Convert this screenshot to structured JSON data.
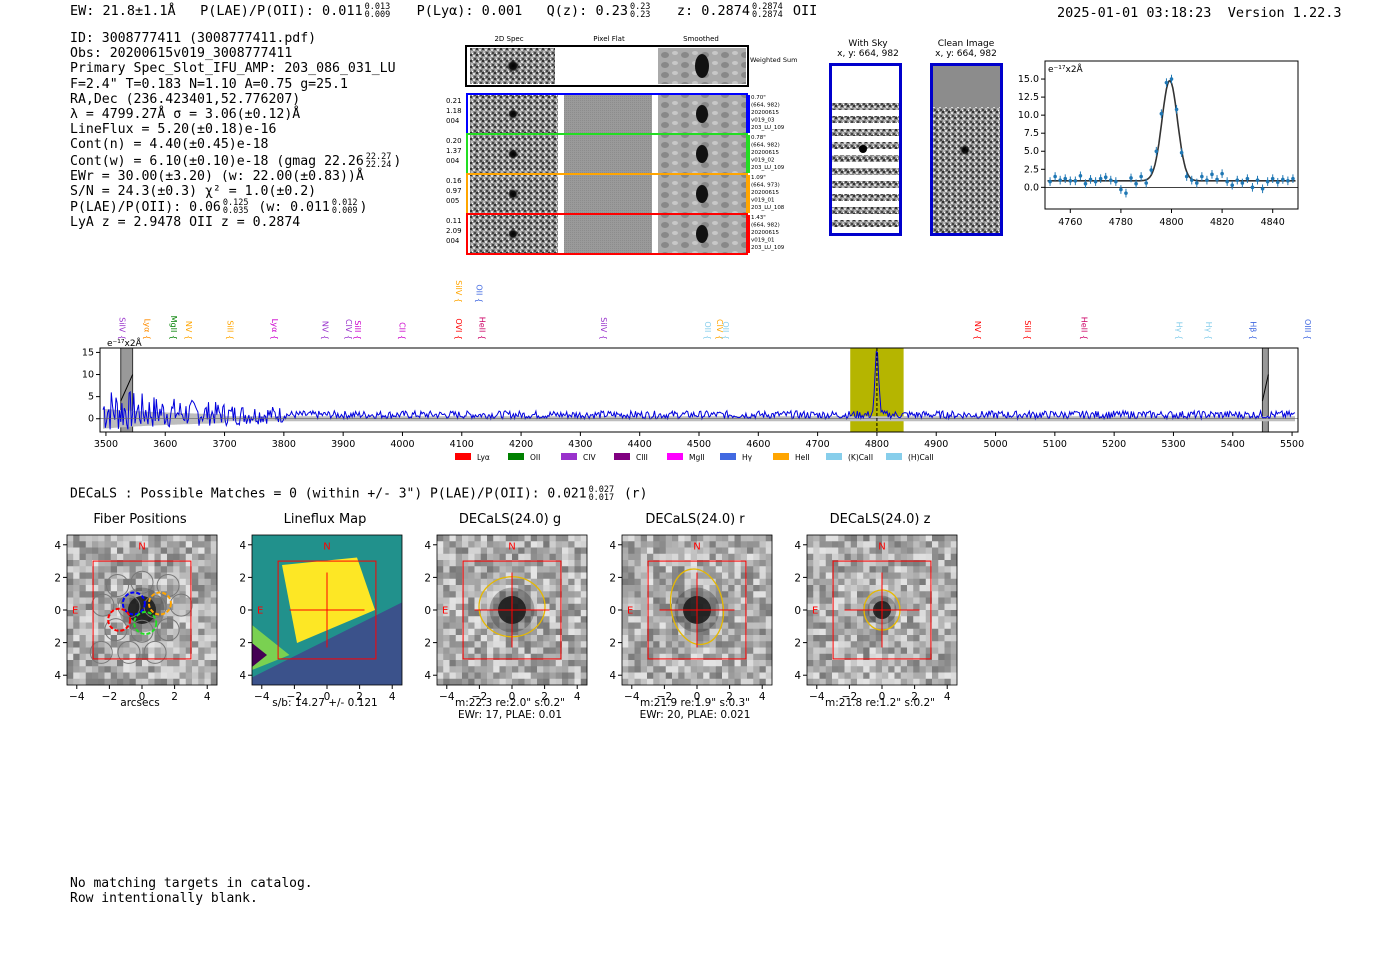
{
  "header": {
    "ew": "EW: 21.8±1.1Å",
    "plae_label": "P(LAE)/P(OII): 0.011",
    "plae_hi": "0.013",
    "plae_lo": "0.009",
    "plya": "P(Lyα): 0.001",
    "qz_label": "Q(z): 0.23",
    "qz_hi": "0.23",
    "qz_lo": "0.23",
    "z_label": "z: 0.2874",
    "z_hi": "0.2874",
    "z_lo": "0.2874",
    "z_line": "OII",
    "timestamp": "2025-01-01 03:18:23",
    "version": "Version 1.22.3"
  },
  "info": {
    "id": "ID: 3008777411 (3008777411.pdf)",
    "obs": "Obs: 20200615v019_3008777411",
    "primary": "Primary Spec_Slot_IFU_AMP: 203_086_031_LU",
    "params": "F=2.4\"  T=0.183  N=1.10  A=0.75  g=25.1",
    "radec": "RA,Dec (236.423401,52.776207)",
    "lambda": "λ = 4799.27Å   σ = 3.06(±0.12)Å",
    "lineflux": "LineFlux = 5.20(±0.18)e-16",
    "contn": "Cont(n) = 4.40(±0.45)e-18",
    "contw_a": "Cont(w) = 6.10(±0.10)e-18 (gmag 22.26",
    "contw_hi": "22.27",
    "contw_lo": "22.24",
    "contw_b": ")",
    "ewr": "EWr = 30.00(±3.20) (w: 22.00(±0.83))Å",
    "sn": "S/N = 24.3(±0.3)  χ² = 1.0(±0.2)",
    "plae_a": "P(LAE)/P(OII): 0.06",
    "plae_hi": "0.125",
    "plae_lo": "0.035",
    "plae_b": "(w: 0.011",
    "plae_w_hi": "0.012",
    "plae_w_lo": "0.009",
    "plae_c": ")",
    "z": "LyA z = 2.9478   OII z = 0.2874"
  },
  "cutouts": {
    "col_headers": [
      "2D Spec",
      "Pixel Flat",
      "Smoothed"
    ],
    "weighted": "Weighted Sum",
    "rows": [
      {
        "left": [
          "0.21",
          "1.18",
          "004"
        ],
        "right": [
          "0.70\"",
          "(664, 982)",
          "20200615",
          "v019_03",
          "203_LU_109"
        ],
        "color": "#0000ff"
      },
      {
        "left": [
          "0.20",
          "1.37",
          "004"
        ],
        "right": [
          "0.78\"",
          "(664, 982)",
          "20200615",
          "v019_02",
          "203_LU_109"
        ],
        "color": "#22dd22"
      },
      {
        "left": [
          "0.16",
          "0.97",
          "005"
        ],
        "right": [
          "1.09\"",
          "(664, 973)",
          "20200615",
          "v019_01",
          "203_LU_108"
        ],
        "color": "#ffa500"
      },
      {
        "left": [
          "0.11",
          "2.09",
          "004"
        ],
        "right": [
          "1.43\"",
          "(664, 982)",
          "20200615",
          "v019_01",
          "203_LU_109"
        ],
        "color": "#ff0000"
      }
    ]
  },
  "sky": {
    "with_sky": "With Sky",
    "with_sky_xy": "x, y: 664, 982",
    "clean": "Clean Image",
    "clean_xy": "x, y: 664, 982"
  },
  "zoom_chart": {
    "type": "scatter",
    "ylabel": "e⁻¹⁷x2Å",
    "xlim": [
      4750,
      4850
    ],
    "ylim": [
      -3,
      17.5
    ],
    "xticks": [
      "4760",
      "4780",
      "4800",
      "4820",
      "4840"
    ],
    "yticks": [
      "0.0",
      "2.5",
      "5.0",
      "7.5",
      "10.0",
      "12.5",
      "15.0"
    ],
    "x": [
      4752,
      4754,
      4756,
      4758,
      4760,
      4762,
      4764,
      4766,
      4768,
      4770,
      4772,
      4774,
      4776,
      4778,
      4780,
      4782,
      4784,
      4786,
      4788,
      4790,
      4792,
      4794,
      4796,
      4798,
      4800,
      4802,
      4804,
      4806,
      4808,
      4810,
      4812,
      4814,
      4816,
      4818,
      4820,
      4822,
      4824,
      4826,
      4828,
      4830,
      4832,
      4834,
      4836,
      4838,
      4840,
      4842,
      4844,
      4846,
      4848
    ],
    "y": [
      0.8,
      1.5,
      1.0,
      1.2,
      0.9,
      0.9,
      1.6,
      0.5,
      1.1,
      0.8,
      1.2,
      1.4,
      1.0,
      0.8,
      -0.3,
      -0.8,
      1.3,
      0.5,
      1.5,
      0.6,
      2.4,
      5.0,
      10.2,
      14.5,
      15.0,
      10.8,
      4.8,
      1.5,
      1.0,
      0.6,
      1.5,
      1.0,
      1.8,
      1.1,
      1.9,
      0.8,
      0.3,
      1.0,
      0.6,
      1.2,
      0.0,
      1.0,
      -0.2,
      0.8,
      1.2,
      0.7,
      1.1,
      0.9,
      1.2
    ],
    "fit_center": 4799.3,
    "fit_sigma": 3.06,
    "fit_amp": 13.9,
    "fit_base": 0.9
  },
  "spectrum": {
    "type": "line",
    "ylabel": "e⁻¹⁷x2Å",
    "xlim": [
      3490,
      5510
    ],
    "ylim": [
      -3,
      16
    ],
    "xticks": [
      "3500",
      "3600",
      "3700",
      "3800",
      "3900",
      "4000",
      "4100",
      "4200",
      "4300",
      "4400",
      "4500",
      "4600",
      "4700",
      "4800",
      "4900",
      "5000",
      "5100",
      "5200",
      "5300",
      "5400",
      "5500"
    ],
    "yticks": [
      "0",
      "5",
      "10",
      "15"
    ],
    "highlight": [
      4755,
      4845
    ],
    "peak": 4800,
    "masked": [
      [
        3525,
        3545
      ],
      [
        5450,
        5460
      ]
    ],
    "lines": [
      {
        "label": "SiIV",
        "w": 3518,
        "color": "#9932cc",
        "tier": 0
      },
      {
        "label": "Lyα",
        "w": 3560,
        "color": "#ff8c00",
        "tier": 0
      },
      {
        "label": "MgII",
        "w": 3605,
        "color": "#008000",
        "tier": 0
      },
      {
        "label": "NV",
        "w": 3630,
        "color": "#ffa500",
        "tier": 0
      },
      {
        "label": "SiII",
        "w": 3700,
        "color": "#ffa500",
        "tier": 0
      },
      {
        "label": "Lyα",
        "w": 3775,
        "color": "#cc00cc",
        "tier": 0
      },
      {
        "label": "NV",
        "w": 3860,
        "color": "#9932cc",
        "tier": 0
      },
      {
        "label": "CIV",
        "w": 3900,
        "color": "#9932cc",
        "tier": 0
      },
      {
        "label": "SiII",
        "w": 3915,
        "color": "#cc00cc",
        "tier": 0
      },
      {
        "label": "CII",
        "w": 3990,
        "color": "#cc00cc",
        "tier": 0
      },
      {
        "label": "OVI",
        "w": 4085,
        "color": "#ff0000",
        "tier": 0
      },
      {
        "label": "SiIV",
        "w": 4085,
        "color": "#ffa500",
        "tier": 1
      },
      {
        "label": "OII",
        "w": 4120,
        "color": "#4169e1",
        "tier": 1
      },
      {
        "label": "HeII",
        "w": 4125,
        "color": "#cc0066",
        "tier": 0
      },
      {
        "label": "SiIV",
        "w": 4330,
        "color": "#9932cc",
        "tier": 0
      },
      {
        "label": "OII",
        "w": 4505,
        "color": "#87ceeb",
        "tier": 0
      },
      {
        "label": "CIV",
        "w": 4525,
        "color": "#ffa500",
        "tier": 0
      },
      {
        "label": "OII",
        "w": 4535,
        "color": "#87ceeb",
        "tier": 0
      },
      {
        "label": "NV",
        "w": 4960,
        "color": "#ff0000",
        "tier": 0
      },
      {
        "label": "SiII",
        "w": 5045,
        "color": "#ff0000",
        "tier": 0
      },
      {
        "label": "HeII",
        "w": 5140,
        "color": "#cc0066",
        "tier": 0
      },
      {
        "label": "Hγ",
        "w": 5300,
        "color": "#87ceeb",
        "tier": 0
      },
      {
        "label": "Hγ",
        "w": 5350,
        "color": "#87ceeb",
        "tier": 0
      },
      {
        "label": "Hβ",
        "w": 5425,
        "color": "#4169e1",
        "tier": 0
      },
      {
        "label": "OIII",
        "w": 5535,
        "color": "#4169e1",
        "tier": 0
      }
    ],
    "legend": [
      {
        "label": "Lyα",
        "color": "#ff0000"
      },
      {
        "label": "OII",
        "color": "#008000"
      },
      {
        "label": "CIV",
        "color": "#9932cc"
      },
      {
        "label": "CIII",
        "color": "#800080"
      },
      {
        "label": "MgII",
        "color": "#ff00ff"
      },
      {
        "label": "Hγ",
        "color": "#4169e1"
      },
      {
        "label": "HeII",
        "color": "#ffa500"
      },
      {
        "label": "(K)CaII",
        "color": "#87ceeb"
      },
      {
        "label": "(H)CaII",
        "color": "#87ceeb"
      }
    ]
  },
  "decals": {
    "line_a": "DECaLS : Possible Matches = 0 (within +/- 3\")  P(LAE)/P(OII): 0.021",
    "hi": "0.027",
    "lo": "0.017",
    "line_b": "(r)"
  },
  "panels": [
    {
      "title": "Fiber Positions",
      "caption": [
        "arcsecs"
      ],
      "kind": "fiber"
    },
    {
      "title": "Lineflux Map",
      "caption": [
        "s/b: 14.27 +/- 0.121"
      ],
      "kind": "lineflux"
    },
    {
      "title": "DECaLS(24.0) g",
      "caption": [
        "m:22.3  re:2.0\"  s:0.2\"",
        "EWr: 17, PLAE: 0.01"
      ],
      "kind": "g"
    },
    {
      "title": "DECaLS(24.0) r",
      "caption": [
        "m:21.9  re:1.9\"  s:0.3\"",
        "EWr: 20, PLAE: 0.021"
      ],
      "kind": "r"
    },
    {
      "title": "DECaLS(24.0) z",
      "caption": [
        "m:21.8  re:1.2\"  s:0.2\""
      ],
      "kind": "z"
    }
  ],
  "panel_axes": {
    "ticks": [
      "−4",
      "−2",
      "0",
      "2",
      "4"
    ],
    "north": "N",
    "east": "E"
  },
  "footer": {
    "line1": "No matching targets in catalog.",
    "line2": "Row intentionally blank."
  }
}
